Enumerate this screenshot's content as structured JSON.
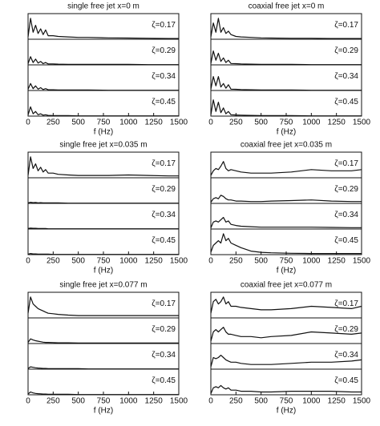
{
  "chart_data": [
    {
      "type": "line",
      "title": "single free jet x=0 m",
      "xlabel": "f (Hz)",
      "x": [
        0,
        25,
        50,
        75,
        100,
        125,
        150,
        175,
        200,
        250,
        300,
        400,
        500,
        600,
        800,
        1000,
        1200,
        1400,
        1500
      ],
      "xlim": [
        0,
        1500
      ],
      "xticks": [
        0,
        250,
        500,
        750,
        1000,
        1250,
        1500
      ],
      "ylim": [
        0,
        1
      ],
      "series": [
        {
          "name": "ζ=0.17",
          "color": "#111111",
          "values": [
            0.1,
            0.9,
            0.3,
            0.6,
            0.25,
            0.45,
            0.2,
            0.4,
            0.15,
            0.15,
            0.12,
            0.1,
            0.08,
            0.08,
            0.06,
            0.05,
            0.04,
            0.03,
            0.03
          ]
        },
        {
          "name": "ζ=0.29",
          "color": "#111111",
          "values": [
            0.05,
            0.35,
            0.1,
            0.25,
            0.08,
            0.15,
            0.05,
            0.1,
            0.04,
            0.04,
            0.03,
            0.02,
            0.02,
            0.02,
            0.02,
            0.02,
            0.01,
            0.01,
            0.01
          ]
        },
        {
          "name": "ζ=0.34",
          "color": "#111111",
          "values": [
            0.05,
            0.3,
            0.08,
            0.2,
            0.06,
            0.12,
            0.04,
            0.08,
            0.03,
            0.03,
            0.02,
            0.02,
            0.02,
            0.02,
            0.01,
            0.01,
            0.01,
            0.01,
            0.01
          ]
        },
        {
          "name": "ζ=0.45",
          "color": "#111111",
          "values": [
            0.05,
            0.4,
            0.1,
            0.2,
            0.06,
            0.1,
            0.04,
            0.06,
            0.03,
            0.02,
            0.02,
            0.02,
            0.01,
            0.01,
            0.01,
            0.01,
            0.01,
            0.01,
            0.01
          ]
        }
      ]
    },
    {
      "type": "line",
      "title": "coaxial free jet x=0 m",
      "xlabel": "f (Hz)",
      "x": [
        0,
        25,
        50,
        75,
        100,
        125,
        150,
        175,
        200,
        250,
        300,
        400,
        500,
        600,
        800,
        1000,
        1200,
        1400,
        1500
      ],
      "xlim": [
        0,
        1500
      ],
      "xticks": [
        0,
        250,
        500,
        750,
        1000,
        1250,
        1500
      ],
      "ylim": [
        0,
        1
      ],
      "series": [
        {
          "name": "ζ=0.17",
          "color": "#111111",
          "values": [
            0.1,
            0.7,
            0.3,
            0.9,
            0.3,
            0.5,
            0.25,
            0.35,
            0.2,
            0.12,
            0.1,
            0.08,
            0.06,
            0.05,
            0.04,
            0.04,
            0.03,
            0.03,
            0.03
          ]
        },
        {
          "name": "ζ=0.29",
          "color": "#111111",
          "values": [
            0.05,
            0.6,
            0.2,
            0.5,
            0.15,
            0.3,
            0.1,
            0.2,
            0.06,
            0.05,
            0.04,
            0.03,
            0.02,
            0.02,
            0.02,
            0.01,
            0.01,
            0.01,
            0.01
          ]
        },
        {
          "name": "ζ=0.34",
          "color": "#111111",
          "values": [
            0.05,
            0.6,
            0.2,
            0.6,
            0.15,
            0.3,
            0.1,
            0.25,
            0.06,
            0.05,
            0.04,
            0.03,
            0.02,
            0.02,
            0.02,
            0.01,
            0.01,
            0.01,
            0.01
          ]
        },
        {
          "name": "ζ=0.45",
          "color": "#111111",
          "values": [
            0.05,
            0.7,
            0.2,
            0.6,
            0.15,
            0.35,
            0.1,
            0.2,
            0.06,
            0.05,
            0.04,
            0.03,
            0.02,
            0.02,
            0.02,
            0.01,
            0.01,
            0.01,
            0.01
          ]
        }
      ]
    },
    {
      "type": "line",
      "title": "single free jet x=0.035 m",
      "xlabel": "f (Hz)",
      "x": [
        0,
        25,
        50,
        75,
        100,
        125,
        150,
        175,
        200,
        250,
        300,
        400,
        500,
        600,
        800,
        1000,
        1200,
        1400,
        1500
      ],
      "xlim": [
        0,
        1500
      ],
      "xticks": [
        0,
        250,
        500,
        750,
        1000,
        1250,
        1500
      ],
      "ylim": [
        0,
        1
      ],
      "series": [
        {
          "name": "ζ=0.17",
          "color": "#111111",
          "values": [
            0.1,
            0.9,
            0.4,
            0.6,
            0.3,
            0.45,
            0.25,
            0.35,
            0.2,
            0.2,
            0.15,
            0.12,
            0.1,
            0.1,
            0.1,
            0.12,
            0.1,
            0.08,
            0.08
          ]
        },
        {
          "name": "ζ=0.29",
          "color": "#111111",
          "values": [
            0.02,
            0.05,
            0.03,
            0.04,
            0.02,
            0.03,
            0.02,
            0.02,
            0.02,
            0.02,
            0.02,
            0.01,
            0.01,
            0.01,
            0.01,
            0.01,
            0.01,
            0.01,
            0.01
          ]
        },
        {
          "name": "ζ=0.34",
          "color": "#111111",
          "values": [
            0.02,
            0.04,
            0.03,
            0.03,
            0.02,
            0.02,
            0.02,
            0.02,
            0.01,
            0.01,
            0.01,
            0.01,
            0.01,
            0.01,
            0.01,
            0.01,
            0.01,
            0.01,
            0.01
          ]
        },
        {
          "name": "ζ=0.45",
          "color": "#111111",
          "values": [
            0.02,
            0.05,
            0.03,
            0.03,
            0.02,
            0.02,
            0.02,
            0.02,
            0.02,
            0.01,
            0.01,
            0.01,
            0.01,
            0.01,
            0.01,
            0.01,
            0.01,
            0.01,
            0.01
          ]
        }
      ]
    },
    {
      "type": "line",
      "title": "coaxial free jet x=0.035 m",
      "xlabel": "f (Hz)",
      "x": [
        0,
        25,
        50,
        75,
        100,
        125,
        150,
        175,
        200,
        250,
        300,
        400,
        500,
        600,
        800,
        1000,
        1200,
        1400,
        1500
      ],
      "xlim": [
        0,
        1500
      ],
      "xticks": [
        0,
        250,
        500,
        750,
        1000,
        1250,
        1500
      ],
      "ylim": [
        0,
        1
      ],
      "series": [
        {
          "name": "ζ=0.17",
          "color": "#111111",
          "values": [
            0.1,
            0.3,
            0.4,
            0.35,
            0.5,
            0.7,
            0.4,
            0.3,
            0.35,
            0.3,
            0.25,
            0.2,
            0.2,
            0.2,
            0.25,
            0.35,
            0.3,
            0.3,
            0.35
          ]
        },
        {
          "name": "ζ=0.29",
          "color": "#111111",
          "values": [
            0.05,
            0.2,
            0.25,
            0.2,
            0.35,
            0.3,
            0.2,
            0.15,
            0.15,
            0.1,
            0.1,
            0.08,
            0.08,
            0.1,
            0.12,
            0.15,
            0.1,
            0.08,
            0.08
          ]
        },
        {
          "name": "ζ=0.34",
          "color": "#111111",
          "values": [
            0.05,
            0.3,
            0.35,
            0.3,
            0.4,
            0.5,
            0.3,
            0.35,
            0.2,
            0.15,
            0.12,
            0.1,
            0.08,
            0.08,
            0.08,
            0.08,
            0.07,
            0.06,
            0.06
          ]
        },
        {
          "name": "ζ=0.45",
          "color": "#111111",
          "values": [
            0.1,
            0.4,
            0.5,
            0.6,
            0.5,
            0.9,
            0.6,
            0.7,
            0.5,
            0.4,
            0.3,
            0.15,
            0.1,
            0.08,
            0.06,
            0.05,
            0.05,
            0.05,
            0.05
          ]
        }
      ]
    },
    {
      "type": "line",
      "title": "single free jet x=0.077 m",
      "xlabel": "f (Hz)",
      "x": [
        0,
        25,
        50,
        75,
        100,
        125,
        150,
        175,
        200,
        250,
        300,
        400,
        500,
        600,
        800,
        1000,
        1200,
        1400,
        1500
      ],
      "xlim": [
        0,
        1500
      ],
      "xticks": [
        0,
        250,
        500,
        750,
        1000,
        1250,
        1500
      ],
      "ylim": [
        0,
        1
      ],
      "series": [
        {
          "name": "ζ=0.17",
          "color": "#111111",
          "values": [
            0.2,
            0.9,
            0.6,
            0.5,
            0.4,
            0.35,
            0.3,
            0.25,
            0.2,
            0.18,
            0.15,
            0.12,
            0.1,
            0.1,
            0.1,
            0.1,
            0.1,
            0.1,
            0.1
          ]
        },
        {
          "name": "ζ=0.29",
          "color": "#111111",
          "values": [
            0.05,
            0.2,
            0.15,
            0.12,
            0.1,
            0.08,
            0.06,
            0.05,
            0.05,
            0.04,
            0.03,
            0.03,
            0.02,
            0.02,
            0.02,
            0.02,
            0.02,
            0.02,
            0.02
          ]
        },
        {
          "name": "ζ=0.34",
          "color": "#111111",
          "values": [
            0.03,
            0.1,
            0.08,
            0.06,
            0.05,
            0.04,
            0.03,
            0.03,
            0.02,
            0.02,
            0.02,
            0.02,
            0.02,
            0.01,
            0.01,
            0.01,
            0.01,
            0.01,
            0.01
          ]
        },
        {
          "name": "ζ=0.45",
          "color": "#111111",
          "values": [
            0.03,
            0.12,
            0.08,
            0.06,
            0.05,
            0.04,
            0.03,
            0.03,
            0.02,
            0.02,
            0.02,
            0.02,
            0.01,
            0.01,
            0.01,
            0.01,
            0.01,
            0.01,
            0.01
          ]
        }
      ]
    },
    {
      "type": "line",
      "title": "coaxial free jet x=0.077 m",
      "xlabel": "f (Hz)",
      "x": [
        0,
        25,
        50,
        75,
        100,
        125,
        150,
        175,
        200,
        250,
        300,
        400,
        500,
        600,
        800,
        1000,
        1200,
        1400,
        1500
      ],
      "xlim": [
        0,
        1500
      ],
      "xticks": [
        0,
        250,
        500,
        750,
        1000,
        1250,
        1500
      ],
      "ylim": [
        0,
        1
      ],
      "series": [
        {
          "name": "ζ=0.17",
          "color": "#111111",
          "values": [
            0.2,
            0.7,
            0.8,
            0.6,
            0.7,
            0.9,
            0.6,
            0.7,
            0.5,
            0.5,
            0.45,
            0.4,
            0.35,
            0.35,
            0.4,
            0.5,
            0.45,
            0.4,
            0.5
          ]
        },
        {
          "name": "ζ=0.29",
          "color": "#111111",
          "values": [
            0.1,
            0.5,
            0.6,
            0.5,
            0.6,
            0.7,
            0.5,
            0.4,
            0.4,
            0.35,
            0.3,
            0.3,
            0.25,
            0.3,
            0.35,
            0.5,
            0.45,
            0.4,
            0.45
          ]
        },
        {
          "name": "ζ=0.34",
          "color": "#111111",
          "values": [
            0.1,
            0.5,
            0.45,
            0.5,
            0.6,
            0.5,
            0.4,
            0.35,
            0.3,
            0.3,
            0.25,
            0.2,
            0.2,
            0.2,
            0.25,
            0.3,
            0.3,
            0.35,
            0.4
          ]
        },
        {
          "name": "ζ=0.45",
          "color": "#111111",
          "values": [
            0.05,
            0.3,
            0.35,
            0.3,
            0.4,
            0.3,
            0.25,
            0.3,
            0.2,
            0.2,
            0.15,
            0.15,
            0.12,
            0.12,
            0.15,
            0.15,
            0.15,
            0.12,
            0.12
          ]
        }
      ]
    }
  ]
}
